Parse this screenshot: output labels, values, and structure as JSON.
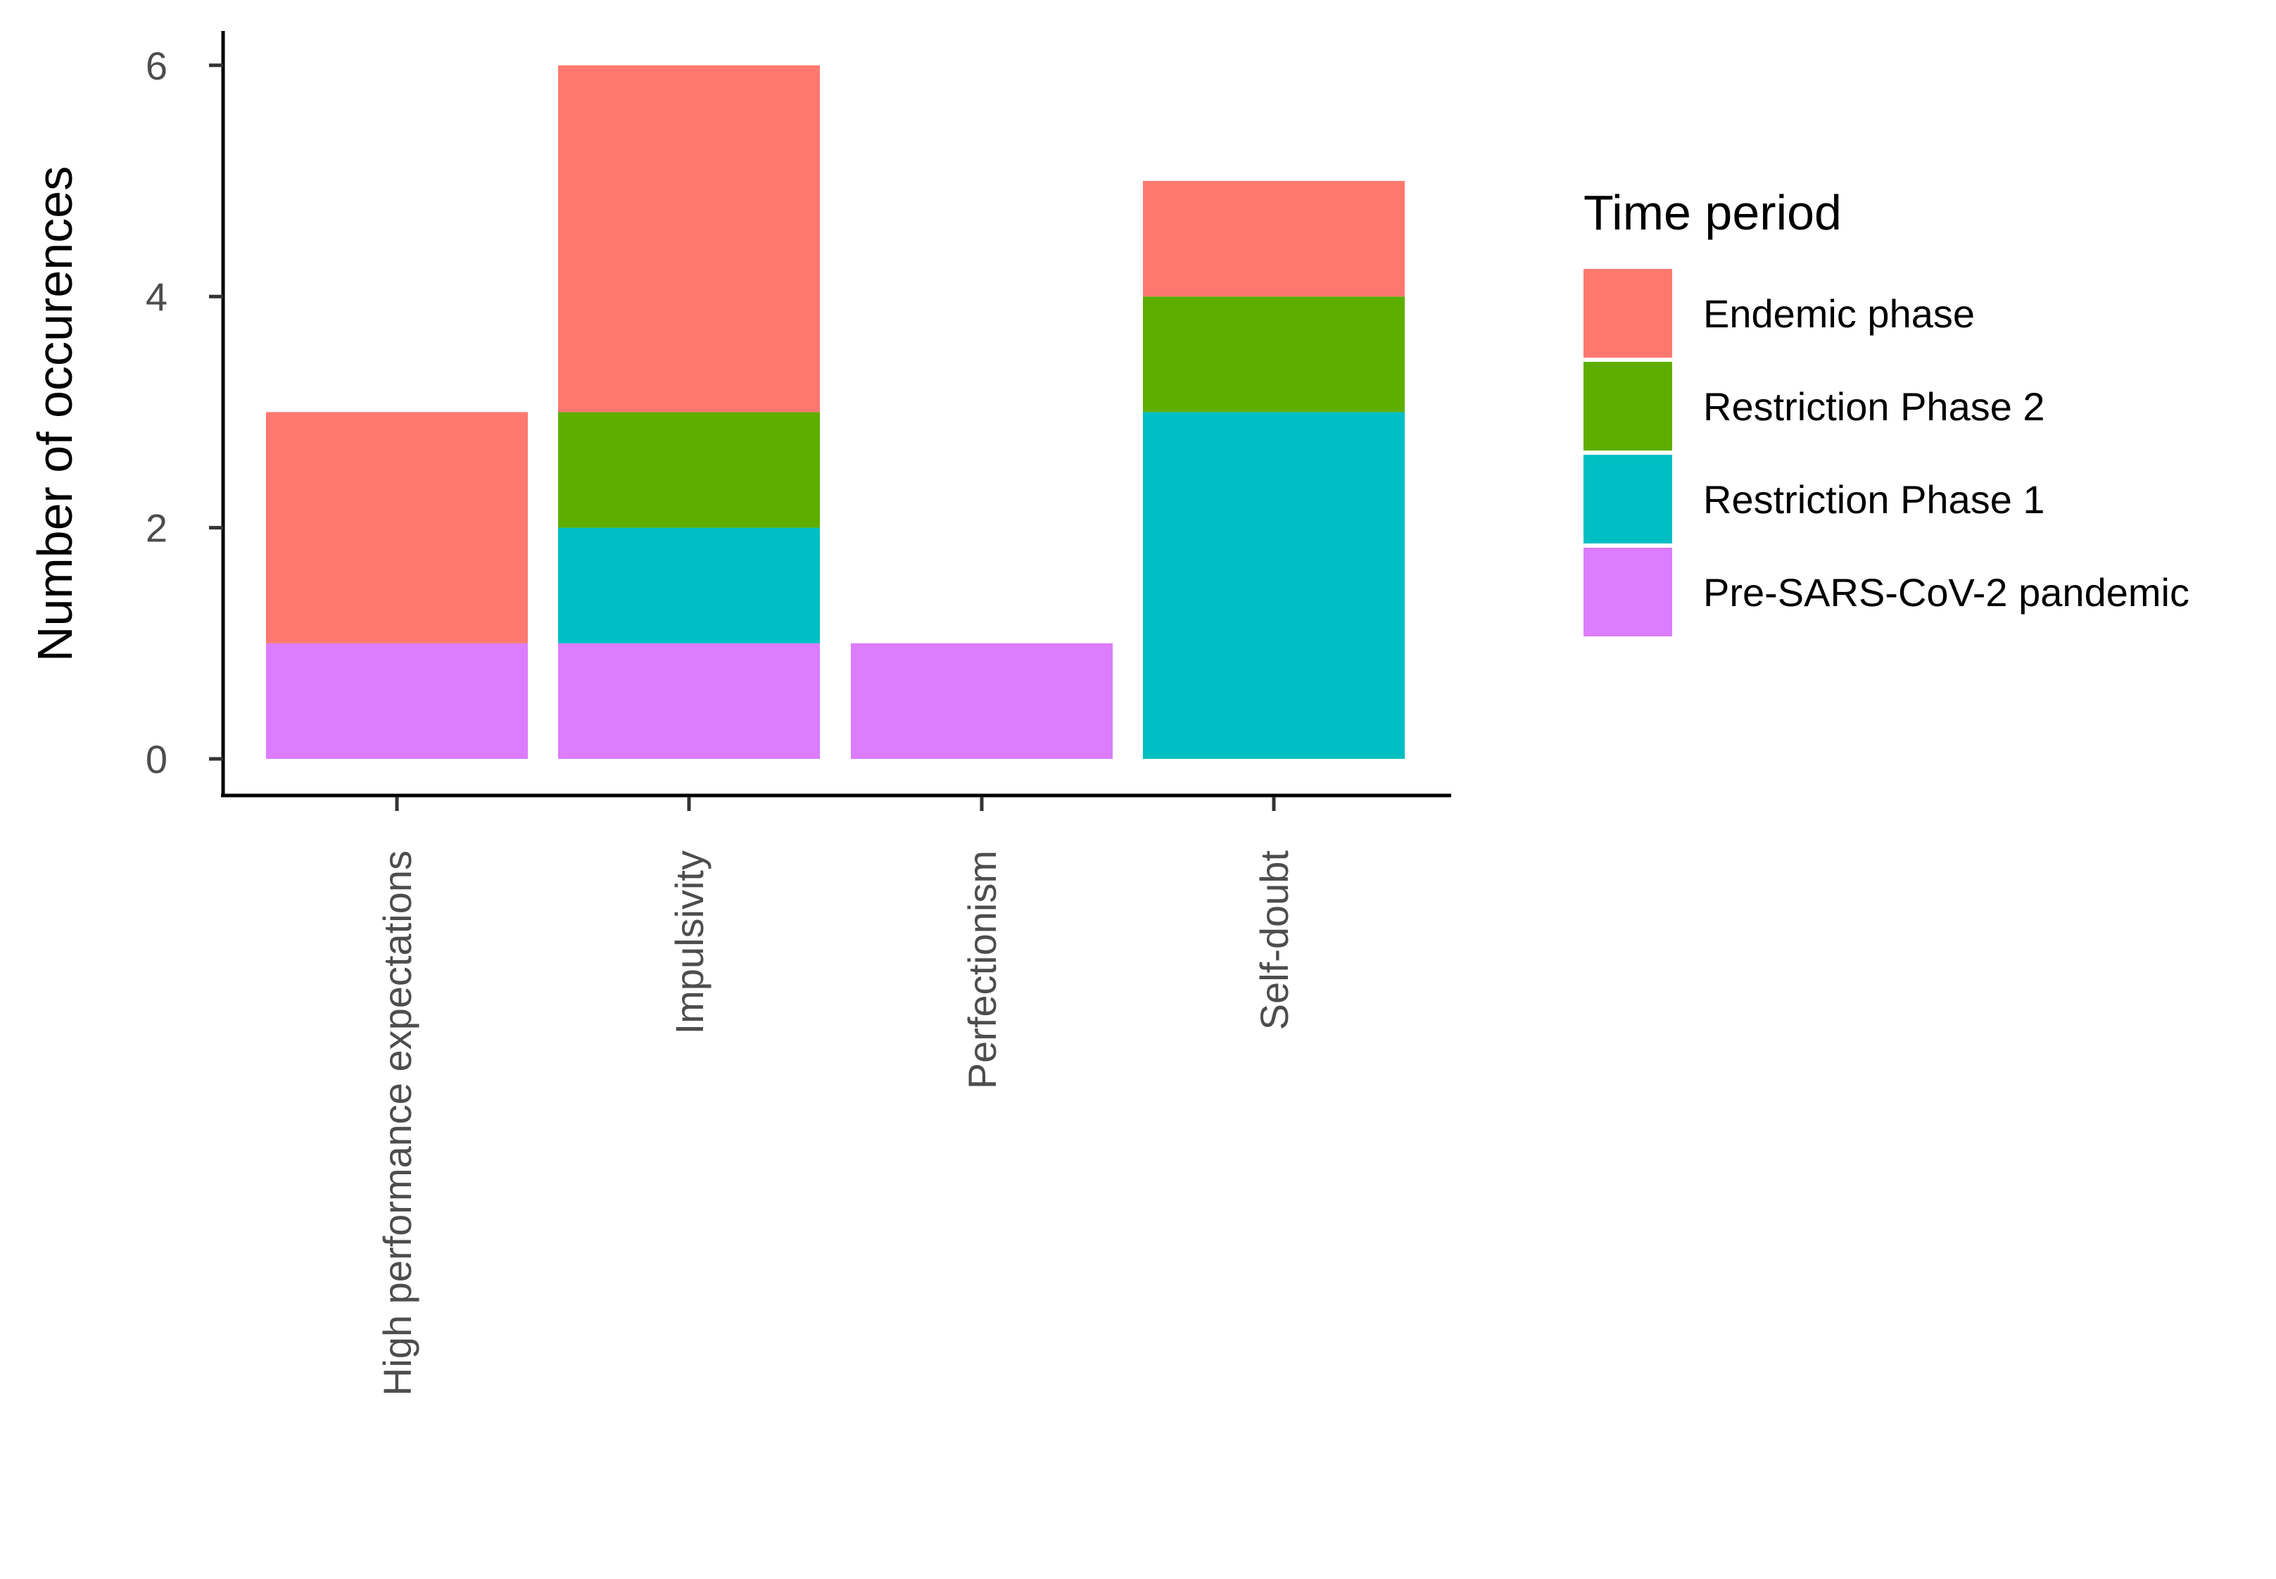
{
  "chart_data": {
    "type": "bar",
    "stacked": true,
    "title": "",
    "xlabel": "",
    "ylabel": "Number of occurences",
    "ylim": [
      0,
      6.3
    ],
    "yticks": [
      0,
      2,
      4,
      6
    ],
    "categories": [
      "High performance expectations",
      "Impulsivity",
      "Perfectionism",
      "Self-doubt"
    ],
    "legend_title": "Time period",
    "legend_position": "right",
    "series": [
      {
        "name": "Pre-SARS-CoV-2 pandemic",
        "color": "#DC7CFF",
        "values": [
          1,
          1,
          1,
          0
        ]
      },
      {
        "name": "Restriction Phase 1",
        "color": "#00BFC4",
        "values": [
          0,
          1,
          0,
          3
        ]
      },
      {
        "name": "Restriction Phase 2",
        "color": "#5EAE00",
        "values": [
          0,
          1,
          0,
          1
        ]
      },
      {
        "name": "Endemic phase",
        "color": "#FF7870",
        "values": [
          2,
          3,
          0,
          1
        ]
      }
    ],
    "legend_order": [
      "Endemic phase",
      "Restriction Phase 2",
      "Restriction Phase 1",
      "Pre-SARS-CoV-2 pandemic"
    ]
  }
}
